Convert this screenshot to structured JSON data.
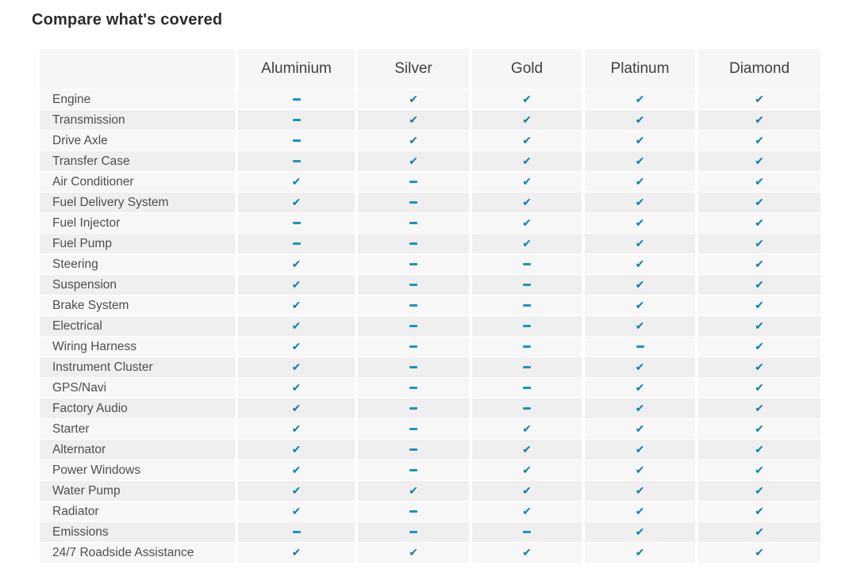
{
  "title": "Compare what's covered",
  "colors": {
    "check": "#0f7ea6",
    "dash": "#1a94c0",
    "header_bg": "#f6f6f6",
    "row_odd_bg": "#f7f7f7",
    "row_even_bg": "#efefef"
  },
  "symbols": {
    "check": "✔"
  },
  "table": {
    "plans": [
      "Aluminium",
      "Silver",
      "Gold",
      "Platinum",
      "Diamond"
    ],
    "rows": [
      {
        "label": "Engine",
        "covered": [
          false,
          true,
          true,
          true,
          true
        ]
      },
      {
        "label": "Transmission",
        "covered": [
          false,
          true,
          true,
          true,
          true
        ]
      },
      {
        "label": "Drive Axle",
        "covered": [
          false,
          true,
          true,
          true,
          true
        ]
      },
      {
        "label": "Transfer Case",
        "covered": [
          false,
          true,
          true,
          true,
          true
        ]
      },
      {
        "label": "Air Conditioner",
        "covered": [
          true,
          false,
          true,
          true,
          true
        ]
      },
      {
        "label": "Fuel Delivery System",
        "covered": [
          true,
          false,
          true,
          true,
          true
        ]
      },
      {
        "label": "Fuel Injector",
        "covered": [
          false,
          false,
          true,
          true,
          true
        ]
      },
      {
        "label": "Fuel Pump",
        "covered": [
          false,
          false,
          true,
          true,
          true
        ]
      },
      {
        "label": "Steering",
        "covered": [
          true,
          false,
          false,
          true,
          true
        ]
      },
      {
        "label": "Suspension",
        "covered": [
          true,
          false,
          false,
          true,
          true
        ]
      },
      {
        "label": "Brake System",
        "covered": [
          true,
          false,
          false,
          true,
          true
        ]
      },
      {
        "label": "Electrical",
        "covered": [
          true,
          false,
          false,
          true,
          true
        ]
      },
      {
        "label": "Wiring Harness",
        "covered": [
          true,
          false,
          false,
          false,
          true
        ]
      },
      {
        "label": "Instrument Cluster",
        "covered": [
          true,
          false,
          false,
          true,
          true
        ]
      },
      {
        "label": "GPS/Navi",
        "covered": [
          true,
          false,
          false,
          true,
          true
        ]
      },
      {
        "label": "Factory Audio",
        "covered": [
          true,
          false,
          false,
          true,
          true
        ]
      },
      {
        "label": "Starter",
        "covered": [
          true,
          false,
          true,
          true,
          true
        ]
      },
      {
        "label": "Alternator",
        "covered": [
          true,
          false,
          true,
          true,
          true
        ]
      },
      {
        "label": "Power Windows",
        "covered": [
          true,
          false,
          true,
          true,
          true
        ]
      },
      {
        "label": "Water Pump",
        "covered": [
          true,
          true,
          true,
          true,
          true
        ]
      },
      {
        "label": "Radiator",
        "covered": [
          true,
          false,
          true,
          true,
          true
        ]
      },
      {
        "label": "Emissions",
        "covered": [
          false,
          false,
          false,
          true,
          true
        ]
      },
      {
        "label": "24/7 Roadside Assistance",
        "covered": [
          true,
          true,
          true,
          true,
          true
        ]
      }
    ]
  }
}
